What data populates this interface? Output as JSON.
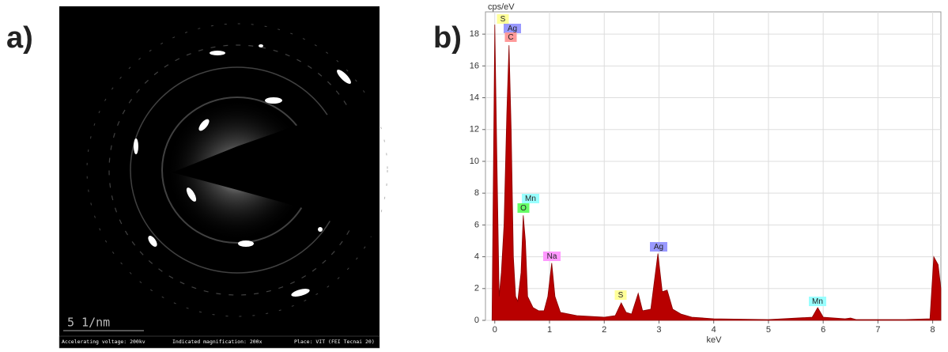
{
  "panel_labels": [
    "a)",
    "b)"
  ],
  "image": {
    "scale_bar": "5 1/nm",
    "footer": [
      "Accelerating voltage: 200kv",
      "Indicated magnification: 200x",
      "Place: VIT (FEI Tecnai 20)"
    ]
  },
  "chart_data": {
    "type": "area",
    "y_label": "cps/eV",
    "x_label": "keV",
    "color": "#b80000",
    "x": [
      -0.05,
      0,
      0.04,
      0.08,
      0.12,
      0.17,
      0.22,
      0.26,
      0.3,
      0.34,
      0.38,
      0.42,
      0.48,
      0.52,
      0.56,
      0.6,
      0.7,
      0.8,
      0.9,
      0.97,
      1.04,
      1.1,
      1.2,
      1.5,
      2.0,
      2.2,
      2.31,
      2.4,
      2.5,
      2.62,
      2.7,
      2.85,
      2.98,
      3.06,
      3.15,
      3.25,
      3.4,
      3.6,
      4.0,
      5.0,
      5.8,
      5.9,
      6.0,
      6.4,
      6.5,
      6.6,
      7.5,
      7.95,
      8.02,
      8.1,
      8.15
    ],
    "values": [
      0,
      18.6,
      10,
      1.5,
      3,
      6,
      13,
      17.3,
      12,
      4,
      1.5,
      1.2,
      3,
      6.6,
      5,
      1.5,
      0.8,
      0.6,
      0.6,
      1.5,
      3.6,
      1.5,
      0.5,
      0.3,
      0.2,
      0.3,
      1.1,
      0.5,
      0.4,
      1.7,
      0.6,
      0.7,
      4.2,
      1.8,
      1.9,
      0.7,
      0.4,
      0.2,
      0.1,
      0.05,
      0.2,
      0.8,
      0.2,
      0.1,
      0.15,
      0.05,
      0.05,
      0.1,
      4.0,
      3.5,
      2
    ],
    "xlim": [
      -0.17,
      8.15
    ],
    "ylim": [
      0,
      19.4
    ],
    "xticks": [
      0,
      1,
      2,
      3,
      4,
      5,
      6,
      7,
      8
    ],
    "yticks": [
      0,
      2,
      4,
      6,
      8,
      10,
      12,
      14,
      16,
      18
    ],
    "grid": true,
    "annotations": [
      {
        "text": "S",
        "color": "#ffff99"
      },
      {
        "text": "Ag",
        "color": "#9999ff"
      },
      {
        "text": "C",
        "color": "#ff9999"
      },
      {
        "text": "Mn",
        "color": "#99ffff"
      },
      {
        "text": "O",
        "color": "#66ff66"
      },
      {
        "text": "Na",
        "color": "#ff99ff"
      },
      {
        "text": "S",
        "color": "#ffff99"
      },
      {
        "text": "Ag",
        "color": "#9999ff"
      },
      {
        "text": "Mn",
        "color": "#99ffff"
      }
    ]
  }
}
